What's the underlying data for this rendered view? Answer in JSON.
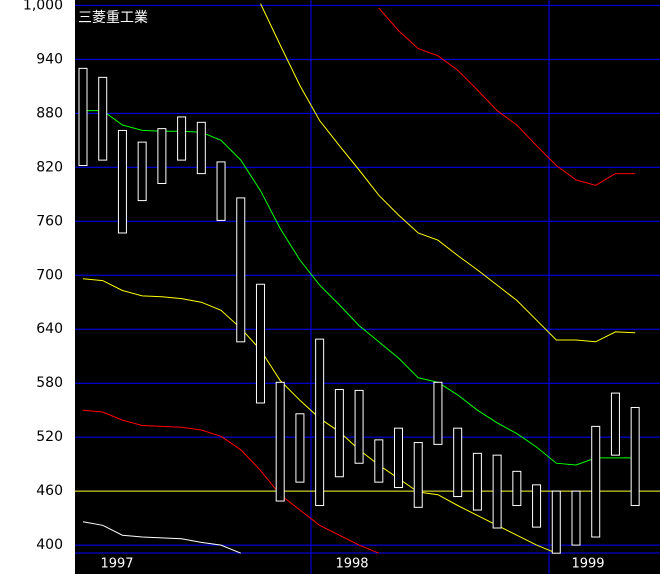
{
  "chart_data": {
    "type": "candlestick",
    "title": "三菱重工業",
    "ylim": [
      389,
      1006
    ],
    "yticks": [
      {
        "value": 1000,
        "label": "1,000"
      },
      940,
      880,
      820,
      760,
      700,
      640,
      580,
      520,
      460,
      400
    ],
    "grid": true,
    "grid_color": "#0000ff",
    "x_labels": [
      "1997",
      "1998",
      "1999"
    ],
    "reference_line": 460,
    "reference_color": "#ffff00",
    "box_color": "#ffffff",
    "box_top": [
      930,
      920,
      861,
      848,
      863,
      876,
      870,
      826,
      786,
      690,
      581,
      546,
      629,
      573,
      572,
      517,
      530,
      514,
      581,
      530,
      502,
      500,
      482,
      467,
      460,
      460,
      532,
      569,
      553
    ],
    "box_bottom": [
      822,
      828,
      747,
      783,
      802,
      828,
      813,
      761,
      626,
      558,
      449,
      470,
      444,
      476,
      491,
      470,
      464,
      442,
      512,
      454,
      439,
      419,
      444,
      420,
      391,
      400,
      409,
      500,
      444
    ],
    "series": [
      {
        "color": "#00ff00",
        "values": [
          883,
          883,
          867,
          861,
          860,
          860,
          859,
          850,
          828,
          794,
          752,
          717,
          689,
          667,
          644,
          626,
          608,
          586,
          581,
          567,
          550,
          536,
          524,
          509,
          491,
          489,
          497,
          497,
          497
        ]
      },
      {
        "color": "#ffff00",
        "values": [
          null,
          null,
          null,
          null,
          null,
          null,
          null,
          null,
          null,
          1002,
          956,
          911,
          872,
          844,
          817,
          789,
          767,
          747,
          739,
          722,
          706,
          689,
          672,
          650,
          628,
          628,
          626,
          637,
          636
        ]
      },
      {
        "color": "#ff0000",
        "values": [
          null,
          null,
          null,
          null,
          null,
          null,
          null,
          null,
          null,
          null,
          null,
          null,
          null,
          null,
          null,
          997,
          972,
          952,
          944,
          928,
          906,
          883,
          867,
          844,
          822,
          806,
          800,
          813,
          813
        ]
      },
      {
        "color": "#ffff00",
        "values": [
          696,
          694,
          683,
          677,
          676,
          674,
          670,
          661,
          641,
          617,
          583,
          561,
          541,
          526,
          506,
          489,
          474,
          459,
          456,
          444,
          433,
          422,
          411,
          400,
          391,
          null,
          null,
          null,
          null
        ]
      },
      {
        "color": "#ff0000",
        "values": [
          550,
          548,
          539,
          533,
          532,
          531,
          528,
          521,
          506,
          483,
          456,
          439,
          422,
          411,
          400,
          391,
          null,
          null,
          null,
          null,
          null,
          null,
          null,
          null,
          null,
          null,
          null,
          null,
          null
        ]
      },
      {
        "color": "#ffffff",
        "values": [
          426,
          422,
          411,
          409,
          408,
          407,
          403,
          400,
          391,
          null,
          null,
          null,
          null,
          null,
          null,
          null,
          null,
          null,
          null,
          null,
          null,
          null,
          null,
          null,
          null,
          null,
          null,
          null,
          null
        ]
      }
    ]
  }
}
